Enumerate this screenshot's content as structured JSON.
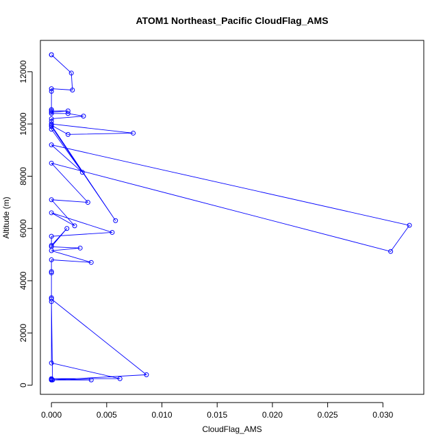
{
  "chart_data": {
    "type": "line",
    "title": "ATOM1 Northeast_Pacific CloudFlag_AMS",
    "xlabel": "CloudFlag_AMS",
    "ylabel": "Altitude (m)",
    "xlim": [
      -0.001,
      0.0337
    ],
    "ylim": [
      -350,
      13200
    ],
    "xticks": [
      0,
      0.005,
      0.01,
      0.015,
      0.02,
      0.025,
      0.03
    ],
    "xtick_labels": [
      "0.000",
      "0.005",
      "0.010",
      "0.015",
      "0.020",
      "0.025",
      "0.030"
    ],
    "yticks": [
      0,
      2000,
      4000,
      6000,
      8000,
      10000,
      12000
    ],
    "ytick_labels": [
      "0",
      "2000",
      "4000",
      "6000",
      "8000",
      "10000",
      "12000"
    ],
    "grid": false,
    "series": [
      {
        "color": "#0000ff",
        "marker": "open-circle",
        "x": [
          0,
          0,
          0.0018,
          0.0019,
          0,
          0,
          0,
          0,
          0.0015,
          0,
          0,
          0.0015,
          0.0029,
          0,
          0,
          0,
          0.0074,
          0.0015,
          0,
          0.0058,
          0,
          0,
          0.0028,
          0,
          0.0324,
          0.0307,
          0,
          0.0033,
          0,
          0.0021,
          0,
          0.0055,
          0,
          0,
          0.0014,
          0,
          0.0026,
          0,
          0.0036,
          0,
          0,
          0,
          0,
          0,
          0.0086,
          0.0001,
          0,
          0,
          0.0062,
          0,
          0.0036,
          0,
          0,
          0
        ],
        "y": [
          12650,
          12650,
          11950,
          11300,
          11350,
          11250,
          10550,
          10500,
          10500,
          10450,
          10400,
          10400,
          10300,
          10200,
          10100,
          10000,
          9650,
          9600,
          9950,
          6300,
          9900,
          9800,
          8150,
          9200,
          6120,
          5120,
          8500,
          7000,
          7100,
          6100,
          6600,
          5850,
          5700,
          5350,
          6000,
          5300,
          5250,
          5150,
          4700,
          4800,
          4350,
          4300,
          3350,
          3300,
          400,
          200,
          3200,
          850,
          250,
          250,
          200,
          200,
          220,
          200
        ]
      }
    ]
  }
}
